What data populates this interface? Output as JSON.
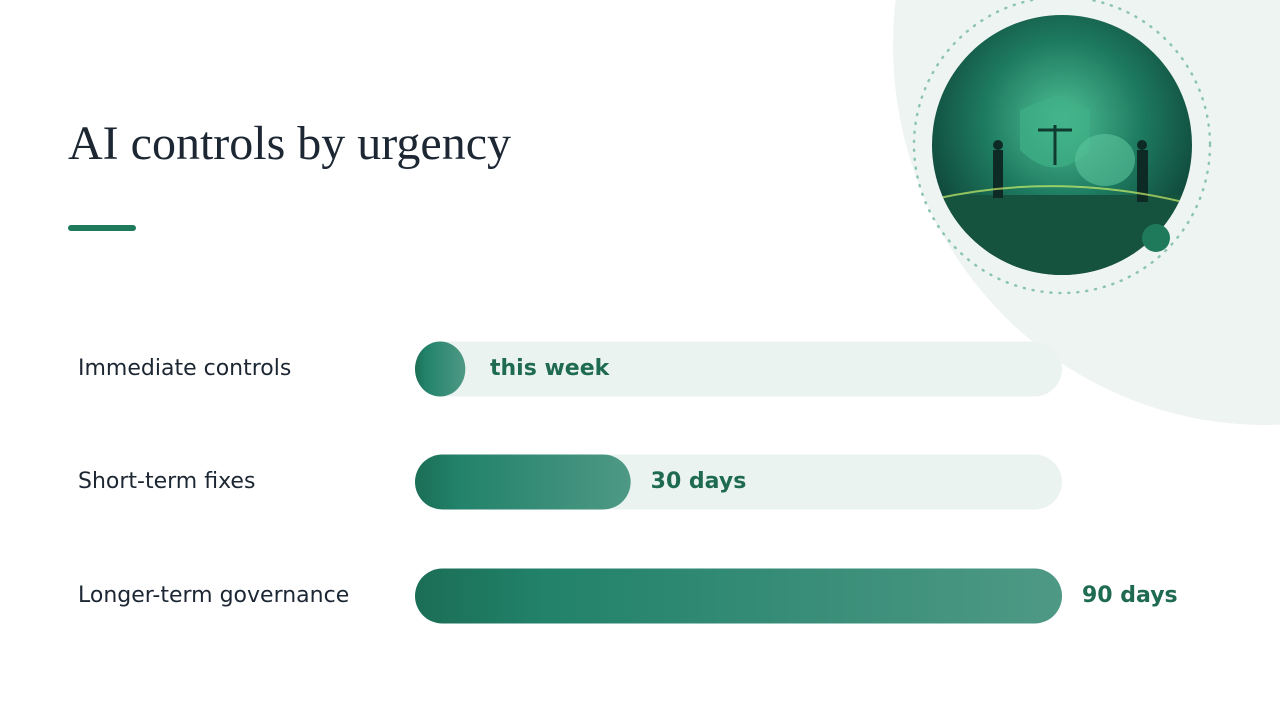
{
  "chart_data": {
    "type": "bar",
    "orientation": "horizontal",
    "title": "AI controls by urgency",
    "categories": [
      "Immediate controls",
      "Short-term fixes",
      "Longer-term governance"
    ],
    "values": [
      7,
      30,
      90
    ],
    "value_labels": [
      "this week",
      "30 days",
      "90 days"
    ],
    "xlim": [
      0,
      90
    ],
    "color": "#1f7a5c",
    "track_color": "#ebf3f0"
  }
}
